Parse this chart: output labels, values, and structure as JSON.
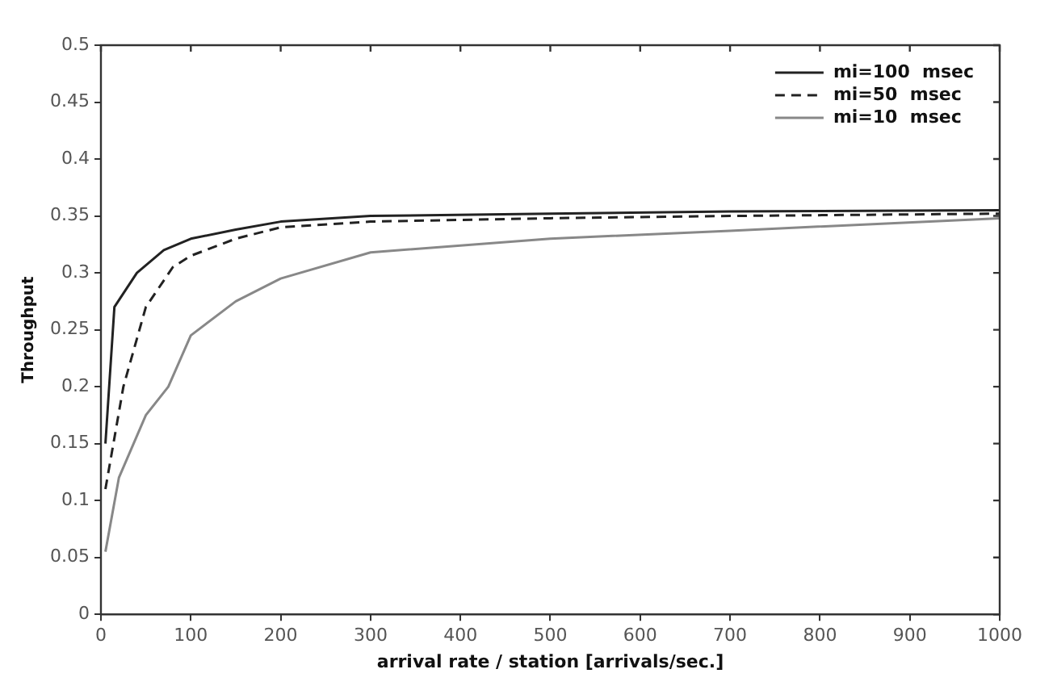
{
  "chart_data": {
    "type": "line",
    "xlabel": "arrival rate / station [arrivals/sec.]",
    "ylabel": "Throughput",
    "xlim": [
      0,
      1000
    ],
    "xticks": [
      0,
      100,
      200,
      300,
      400,
      500,
      600,
      700,
      800,
      900,
      1000
    ],
    "ylim": [
      0,
      0.5
    ],
    "yticks": [
      0,
      0.05,
      0.1,
      0.15,
      0.2,
      0.25,
      0.3,
      0.35,
      0.4,
      0.45,
      0.5
    ],
    "grid": false,
    "legend": "top right",
    "marker": "none",
    "series": [
      {
        "name": "mi=100  msec",
        "color": "#222222",
        "line_style": "solid",
        "x": [
          5,
          15,
          40,
          70,
          100,
          150,
          200,
          300,
          500,
          700,
          1000
        ],
        "values": [
          0.15,
          0.27,
          0.3,
          0.32,
          0.33,
          0.338,
          0.345,
          0.35,
          0.352,
          0.354,
          0.355
        ]
      },
      {
        "name": "mi=50  msec",
        "color": "#222222",
        "line_style": "dashed",
        "x": [
          5,
          25,
          50,
          80,
          100,
          150,
          200,
          300,
          500,
          700,
          1000
        ],
        "values": [
          0.11,
          0.2,
          0.27,
          0.305,
          0.315,
          0.33,
          0.34,
          0.345,
          0.348,
          0.35,
          0.352
        ]
      },
      {
        "name": "mi=10  msec",
        "color": "#888888",
        "line_style": "solid",
        "x": [
          5,
          20,
          50,
          75,
          100,
          150,
          200,
          300,
          500,
          700,
          1000
        ],
        "values": [
          0.055,
          0.12,
          0.175,
          0.2,
          0.245,
          0.275,
          0.295,
          0.318,
          0.33,
          0.337,
          0.348
        ]
      }
    ]
  }
}
